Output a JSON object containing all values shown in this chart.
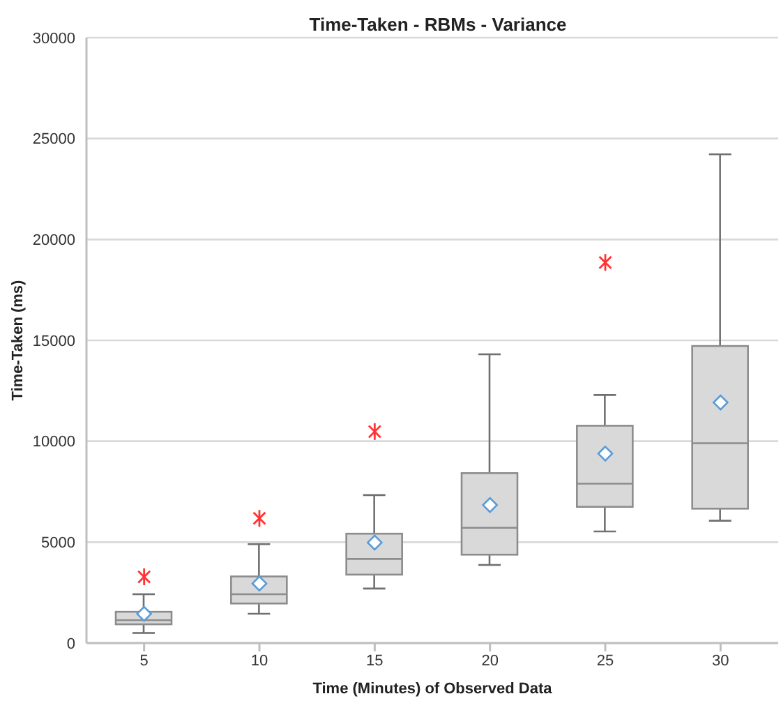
{
  "chart_data": {
    "type": "box",
    "title": "Time-Taken - RBMs - Variance",
    "xlabel": "Time (Minutes) of Observed Data",
    "ylabel": "Time-Taken (ms)",
    "categories": [
      "5",
      "10",
      "15",
      "20",
      "25",
      "30"
    ],
    "series": [
      {
        "color": "#d9d9d9",
        "boxes": [
          {
            "low": 500,
            "q1": 930,
            "median": 1130,
            "q3": 1550,
            "high": 2420,
            "mean": 1450,
            "outliers": [
              3280
            ]
          },
          {
            "low": 1450,
            "q1": 1960,
            "median": 2420,
            "q3": 3300,
            "high": 4900,
            "mean": 2950,
            "outliers": [
              6180
            ]
          },
          {
            "low": 2700,
            "q1": 3390,
            "median": 4170,
            "q3": 5420,
            "high": 7330,
            "mean": 4980,
            "outliers": [
              10480
            ]
          },
          {
            "low": 3870,
            "q1": 4380,
            "median": 5710,
            "q3": 8420,
            "high": 14310,
            "mean": 6840
          },
          {
            "low": 5530,
            "q1": 6750,
            "median": 7900,
            "q3": 10770,
            "high": 12290,
            "mean": 9390,
            "outliers": [
              18860
            ]
          },
          {
            "low": 6060,
            "q1": 6660,
            "median": 9900,
            "q3": 14720,
            "high": 24220,
            "mean": 11920
          }
        ]
      }
    ],
    "ylim": [
      0,
      30000
    ],
    "yticks": [
      0,
      5000,
      10000,
      15000,
      20000,
      25000,
      30000
    ],
    "grid": "y",
    "legend": false
  }
}
